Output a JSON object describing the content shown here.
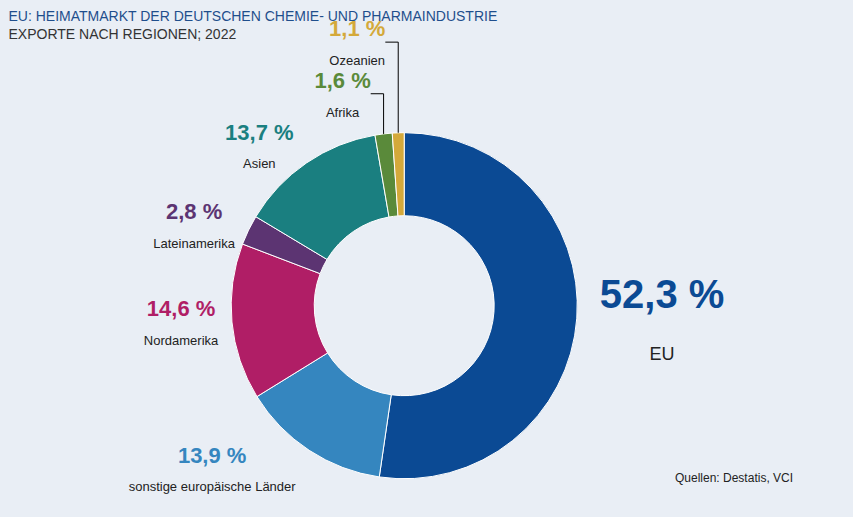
{
  "chart_data": {
    "type": "donut",
    "title": "EU: HEIMATMARKT DER DEUTSCHEN CHEMIE- UND PHARMAINDUSTRIE",
    "subtitle": "EXPORTE NACH REGIONEN; 2022",
    "categories": [
      "EU",
      "sonstige europäische Länder",
      "Nordamerika",
      "Lateinamerika",
      "Asien",
      "Afrika",
      "Ozeanien"
    ],
    "values": [
      52.3,
      13.9,
      14.6,
      2.8,
      13.7,
      1.6,
      1.1
    ],
    "value_labels": [
      "52,3 %",
      "13,9 %",
      "14,6 %",
      "2,8 %",
      "13,7 %",
      "1,6 %",
      "1,1 %"
    ],
    "colors": [
      "#0b4a94",
      "#3586bf",
      "#b01e66",
      "#5c3472",
      "#1a7f80",
      "#5a8a3a",
      "#d4a93a"
    ],
    "data_labels": true,
    "source": "Quellen: Destatis, VCI"
  }
}
